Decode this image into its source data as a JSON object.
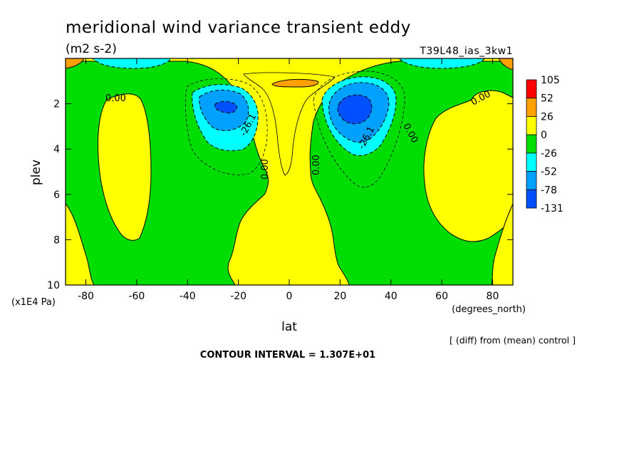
{
  "chart_data": {
    "type": "contour",
    "title": "meridional wind variance transient eddy",
    "units": "(m2 s-2)",
    "run_label": "T39L48_ias_3kw1",
    "xlabel": "lat",
    "x_units": "(degrees_north)",
    "ylabel": "plev",
    "y_units": "(x1E4 Pa)",
    "xlim": [
      -88,
      88
    ],
    "ylim": [
      10,
      0
    ],
    "x_ticks": [
      -80,
      -60,
      -40,
      -20,
      0,
      20,
      40,
      60,
      80
    ],
    "y_ticks": [
      2,
      4,
      6,
      8,
      10
    ],
    "x_tick_labels": [
      "-80",
      "-60",
      "-40",
      "-20",
      "0",
      "20",
      "40",
      "60",
      "80"
    ],
    "y_tick_labels": [
      "2",
      "4",
      "6",
      "8",
      "10"
    ],
    "contour_interval_text": "CONTOUR INTERVAL = 1.307E+01",
    "diff_note": "[ (diff) from (mean) control ]",
    "colorbar": {
      "labels": [
        "105",
        "52",
        "26",
        "0",
        "-26",
        "-52",
        "-78",
        "-131"
      ],
      "colors": [
        "#ff0000",
        "#ffa000",
        "#ffff00",
        "#00dd00",
        "#00ffff",
        "#00a0ff",
        "#0050ff"
      ]
    },
    "contour_labels": [
      "0.00",
      "0.00",
      "0.00",
      "0.00",
      "0.00",
      "-26.1",
      "-26.1"
    ],
    "features": [
      {
        "name": "min-sh-midlat",
        "lat": -26,
        "plev": 2.1,
        "value": -90
      },
      {
        "name": "min-nh-midlat",
        "lat": 28,
        "plev": 2.0,
        "value": -100
      },
      {
        "name": "max-equator-upper",
        "lat": 0,
        "plev": 1.1,
        "value": 30
      },
      {
        "name": "pos-band-sh",
        "lat": -67,
        "plev": 5.0,
        "value": 10
      },
      {
        "name": "pos-band-nh",
        "lat": 66,
        "plev": 5.0,
        "value": 10
      }
    ]
  }
}
